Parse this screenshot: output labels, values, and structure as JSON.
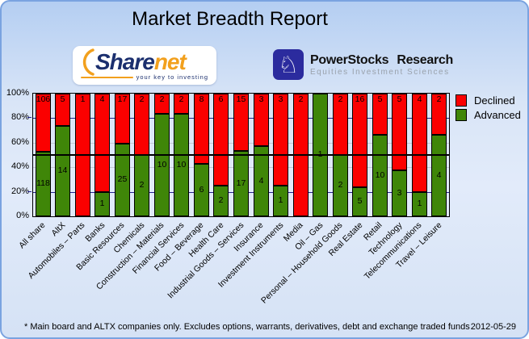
{
  "title": "Market Breadth Report",
  "logos": {
    "sharenet": {
      "name": "Sharenet",
      "part1": "Share",
      "part2": "net",
      "tagline": "your key to investing"
    },
    "powerstocks": {
      "name": "PowerStocks Research",
      "subtitle": "Equities Investment Sciences",
      "knight_glyph": "♘"
    }
  },
  "chart_data": {
    "type": "bar",
    "variant": "stacked-100pct-column",
    "title": "",
    "xlabel": "",
    "ylabel": "",
    "ylim": [
      0,
      100
    ],
    "categories": [
      "All share",
      "AltX",
      "Automobiles – Parts",
      "Banks",
      "Basic Resources",
      "Chemicals",
      "Construction – Materials",
      "Financial Services",
      "Food – Beverage",
      "Health Care",
      "Industrial Goods – Services",
      "Insurance",
      "Investment Instruments",
      "Media",
      "Oil – Gas",
      "Personal – Household Goods",
      "Real Estate",
      "Retail",
      "Technology",
      "Telecommunications",
      "Travel – Leisure"
    ],
    "series": [
      {
        "name": "Declined",
        "color": "#fb0000",
        "values": [
          106,
          5,
          1,
          4,
          17,
          2,
          2,
          2,
          8,
          6,
          15,
          3,
          3,
          2,
          0,
          2,
          16,
          5,
          5,
          4,
          2
        ]
      },
      {
        "name": "Advanced",
        "color": "#3f8608",
        "values": [
          118,
          14,
          0,
          1,
          25,
          2,
          10,
          10,
          6,
          2,
          17,
          4,
          1,
          0,
          1,
          2,
          5,
          10,
          3,
          1,
          4
        ]
      }
    ],
    "y_axis": {
      "ticks": [
        "100%",
        "80%",
        "60%",
        "40%",
        "20%",
        "0%"
      ],
      "min": 0,
      "max": 100,
      "unit": "%"
    },
    "reference_line_pct": 50,
    "gridlines": {
      "navy_pct": [
        80,
        20
      ],
      "gray_pct": [
        60,
        40
      ],
      "black_pct": [
        50
      ]
    },
    "legend_position": "top-right"
  },
  "footer": {
    "note": "* Main board and ALTX companies only. Excludes options, warrants, derivatives, debt and exchange traded funds",
    "date": "2012-05-29"
  }
}
